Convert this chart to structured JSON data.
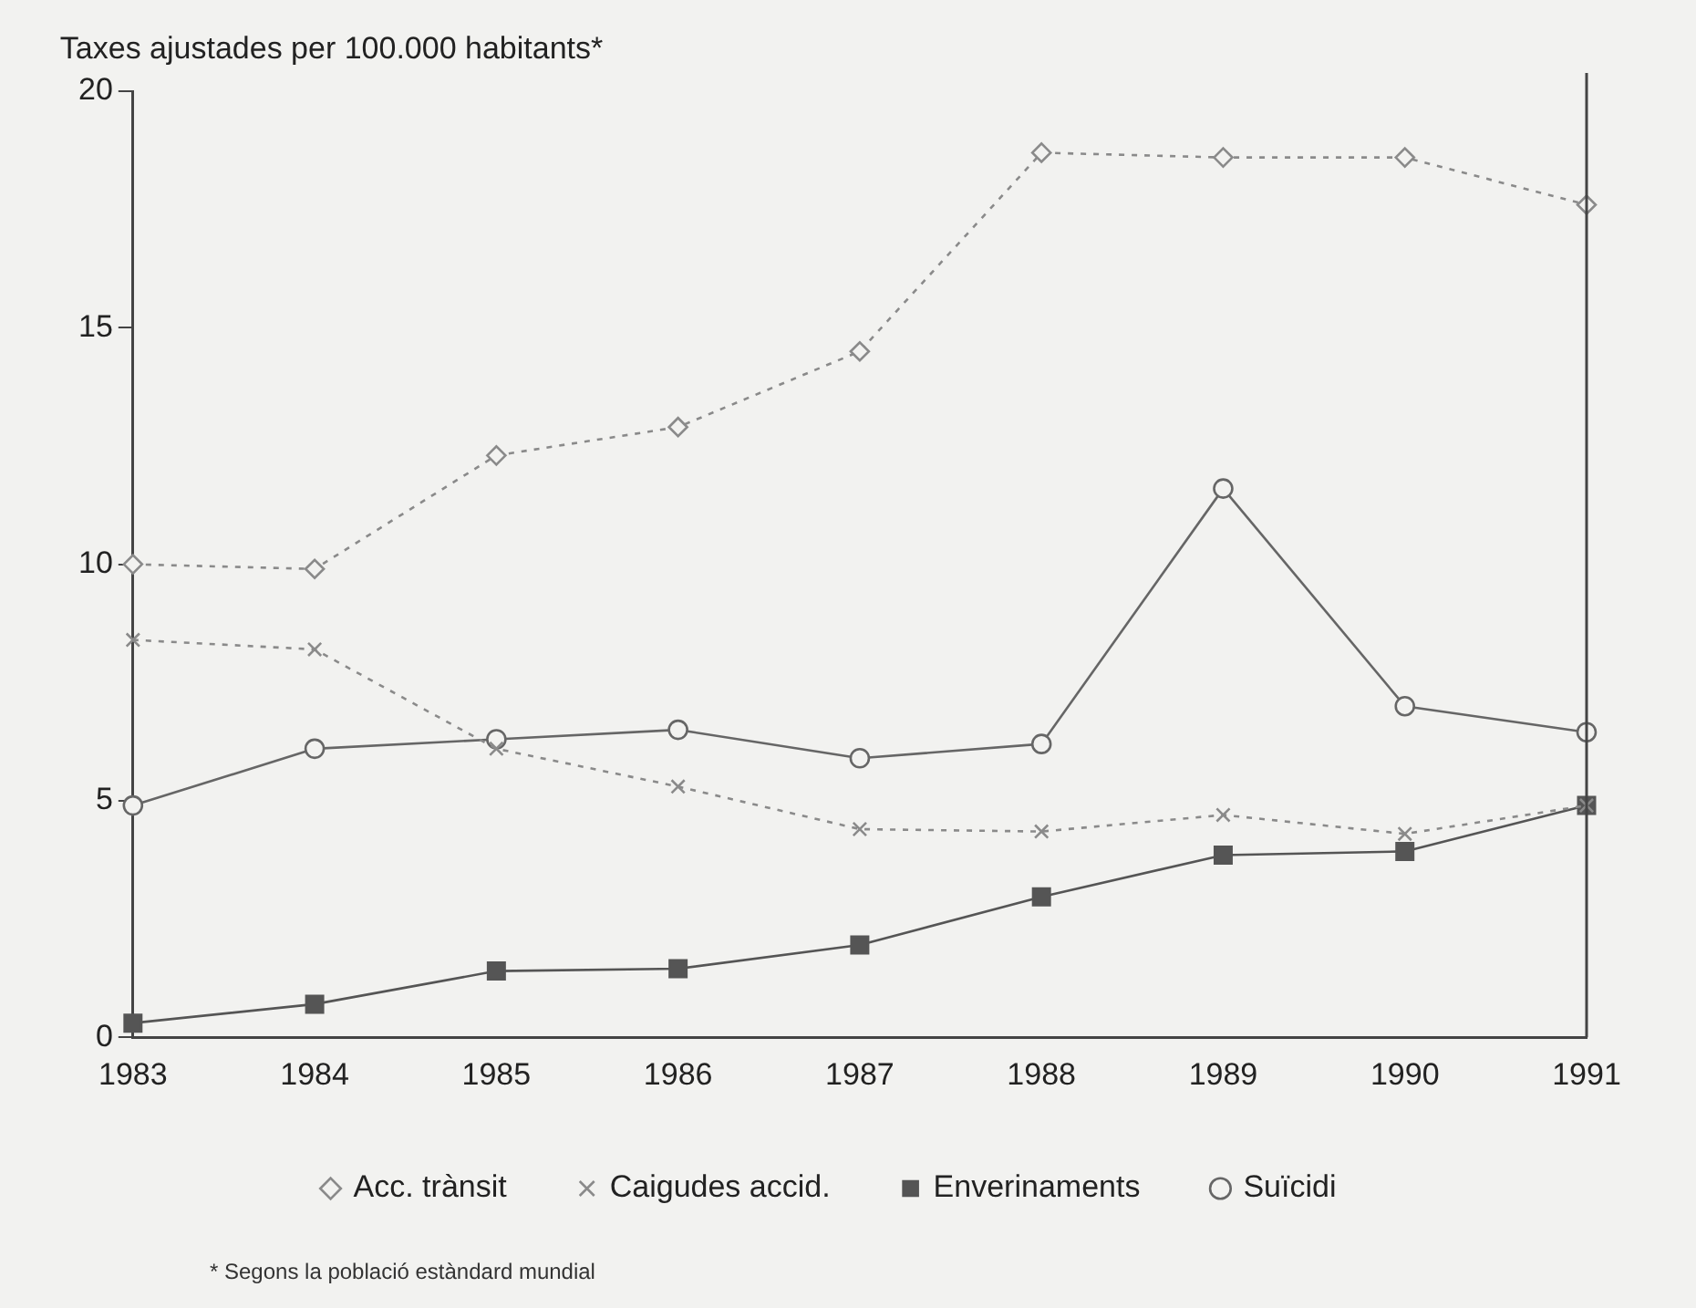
{
  "chart_data": {
    "type": "line",
    "ylabel": "Taxes ajustades per 100.000 habitants*",
    "categories": [
      "1983",
      "1984",
      "1985",
      "1986",
      "1987",
      "1988",
      "1989",
      "1990",
      "1991"
    ],
    "ylim": [
      0,
      20
    ],
    "yticks": [
      0,
      5,
      10,
      15,
      20
    ],
    "grid": false,
    "legend": "bottom",
    "series": [
      {
        "name": "Acc. trànsit",
        "color": "#8a8a8a",
        "marker": "diamond",
        "line_style": "dotted",
        "values": [
          10.0,
          9.9,
          12.3,
          12.9,
          14.5,
          18.7,
          18.6,
          18.6,
          17.6
        ]
      },
      {
        "name": "Caigudes accid.",
        "color": "#8a8a8a",
        "marker": "cross",
        "line_style": "dotted",
        "values": [
          8.4,
          8.2,
          6.1,
          5.3,
          4.4,
          4.35,
          4.7,
          4.3,
          4.9
        ]
      },
      {
        "name": "Enverinaments",
        "color": "#555555",
        "marker": "square",
        "line_style": "solid",
        "values": [
          0.3,
          0.7,
          1.4,
          1.45,
          1.95,
          2.97,
          3.85,
          3.93,
          4.9
        ]
      },
      {
        "name": "Suïcidi",
        "color": "#666666",
        "marker": "circle",
        "line_style": "solid",
        "values": [
          4.9,
          6.1,
          6.3,
          6.5,
          5.9,
          6.2,
          11.6,
          7.0,
          6.45
        ]
      }
    ],
    "annotations": [
      "* Segons la població estàndard mundial"
    ]
  }
}
